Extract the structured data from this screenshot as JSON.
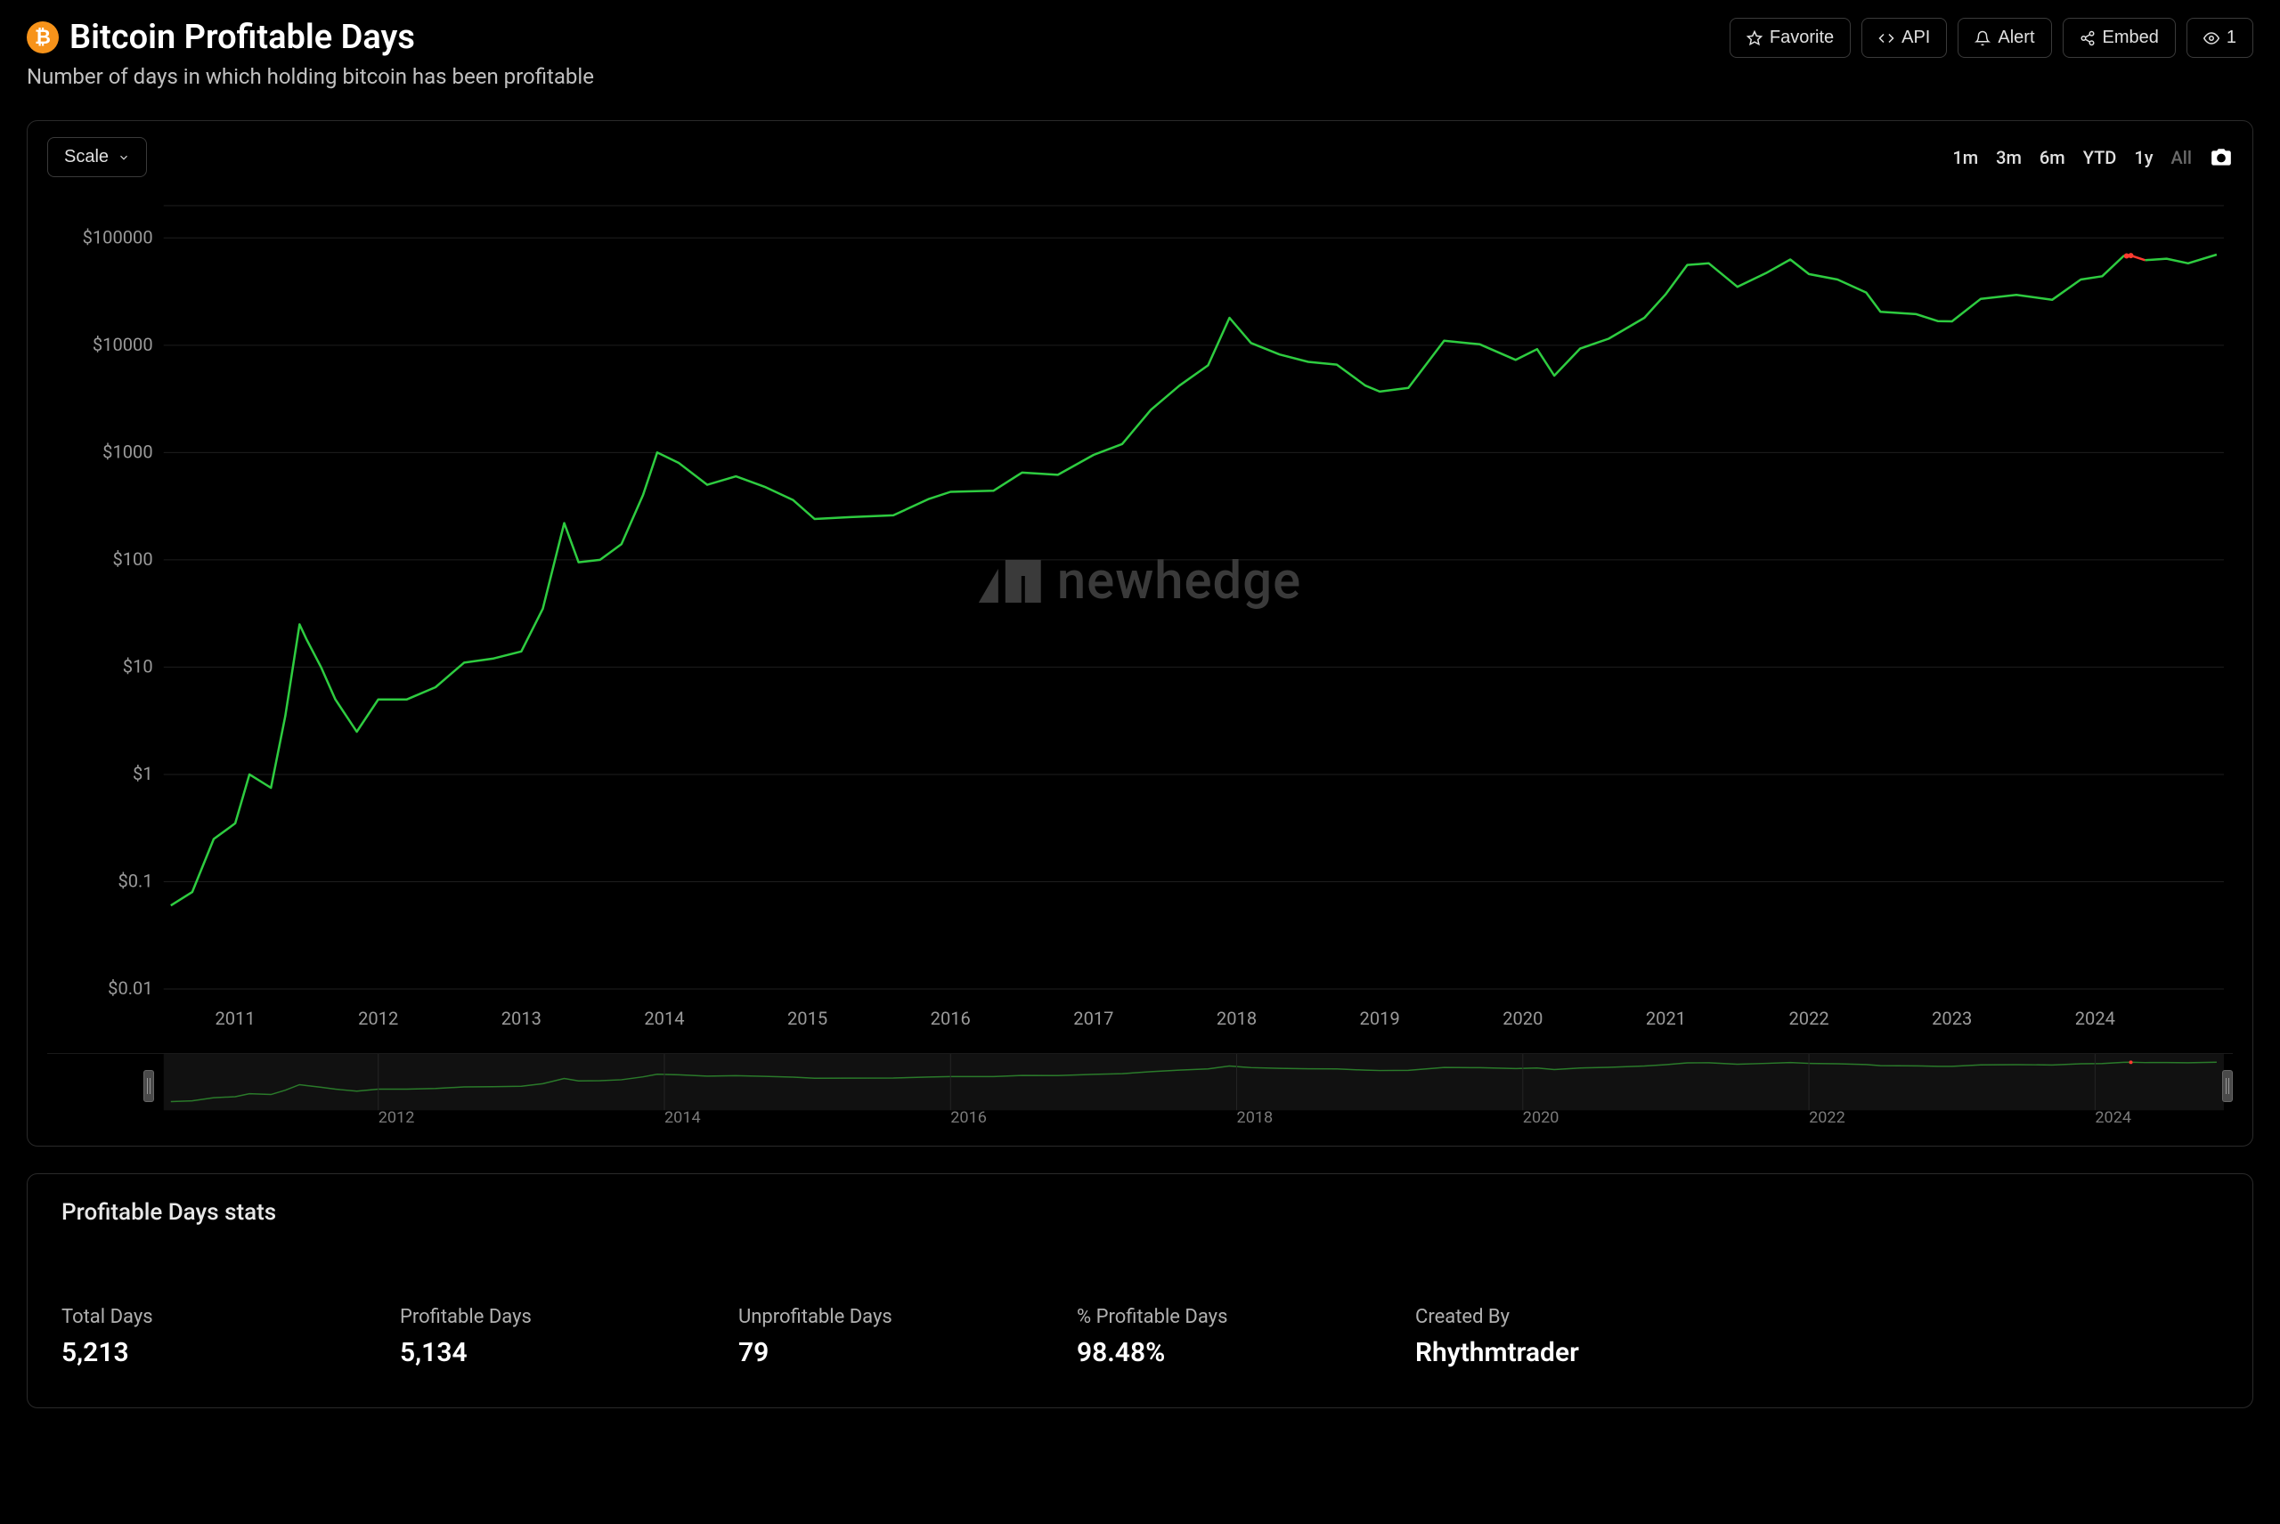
{
  "header": {
    "title": "Bitcoin Profitable Days",
    "subtitle": "Number of days in which holding bitcoin has been profitable",
    "icon_bg": "#f7931a",
    "icon_text": "₿"
  },
  "actions": {
    "favorite": "Favorite",
    "api": "API",
    "alert": "Alert",
    "embed": "Embed",
    "views": "1"
  },
  "toolbar": {
    "scale_label": "Scale",
    "ranges": [
      "1m",
      "3m",
      "6m",
      "YTD",
      "1y",
      "All"
    ],
    "active_range": "All"
  },
  "chart": {
    "type": "line",
    "scale": "log",
    "line_color_profit": "#2ecc40",
    "line_color_loss": "#ff3b30",
    "grid_color": "#1e1e1e",
    "background": "#000000",
    "axis_label_color": "#9a9a9a",
    "axis_fontsize": 20,
    "line_width": 2.5,
    "watermark_text": "newhedge",
    "watermark_color": "#3a3a3a",
    "xlim": [
      2010.5,
      2024.9
    ],
    "ylim": [
      0.01,
      200000
    ],
    "yticks": [
      0.01,
      0.1,
      1,
      10,
      100,
      1000,
      10000,
      100000
    ],
    "ytick_labels": [
      "$0.01",
      "$0.1",
      "$1",
      "$10",
      "$100",
      "$1000",
      "$10000",
      "$100000"
    ],
    "xticks": [
      2011,
      2012,
      2013,
      2014,
      2015,
      2016,
      2017,
      2018,
      2019,
      2020,
      2021,
      2022,
      2023,
      2024
    ],
    "series": [
      {
        "x": 2010.55,
        "y": 0.06,
        "p": true
      },
      {
        "x": 2010.7,
        "y": 0.08,
        "p": true
      },
      {
        "x": 2010.85,
        "y": 0.25,
        "p": true
      },
      {
        "x": 2011.0,
        "y": 0.35,
        "p": true
      },
      {
        "x": 2011.1,
        "y": 1.0,
        "p": true
      },
      {
        "x": 2011.25,
        "y": 0.75,
        "p": true
      },
      {
        "x": 2011.35,
        "y": 3.5,
        "p": true
      },
      {
        "x": 2011.45,
        "y": 25,
        "p": true
      },
      {
        "x": 2011.5,
        "y": 18,
        "p": true
      },
      {
        "x": 2011.6,
        "y": 10,
        "p": true
      },
      {
        "x": 2011.7,
        "y": 5,
        "p": true
      },
      {
        "x": 2011.85,
        "y": 2.5,
        "p": true
      },
      {
        "x": 2012.0,
        "y": 5,
        "p": true
      },
      {
        "x": 2012.2,
        "y": 5,
        "p": true
      },
      {
        "x": 2012.4,
        "y": 6.5,
        "p": true
      },
      {
        "x": 2012.6,
        "y": 11,
        "p": true
      },
      {
        "x": 2012.8,
        "y": 12,
        "p": true
      },
      {
        "x": 2013.0,
        "y": 14,
        "p": true
      },
      {
        "x": 2013.15,
        "y": 35,
        "p": true
      },
      {
        "x": 2013.3,
        "y": 220,
        "p": true
      },
      {
        "x": 2013.4,
        "y": 95,
        "p": true
      },
      {
        "x": 2013.55,
        "y": 100,
        "p": true
      },
      {
        "x": 2013.7,
        "y": 140,
        "p": true
      },
      {
        "x": 2013.85,
        "y": 400,
        "p": true
      },
      {
        "x": 2013.95,
        "y": 1000,
        "p": true
      },
      {
        "x": 2014.1,
        "y": 800,
        "p": true
      },
      {
        "x": 2014.3,
        "y": 500,
        "p": true
      },
      {
        "x": 2014.5,
        "y": 600,
        "p": true
      },
      {
        "x": 2014.7,
        "y": 480,
        "p": true
      },
      {
        "x": 2014.9,
        "y": 360,
        "p": true
      },
      {
        "x": 2015.05,
        "y": 240,
        "p": true
      },
      {
        "x": 2015.3,
        "y": 250,
        "p": true
      },
      {
        "x": 2015.6,
        "y": 260,
        "p": true
      },
      {
        "x": 2015.85,
        "y": 370,
        "p": true
      },
      {
        "x": 2016.0,
        "y": 430,
        "p": true
      },
      {
        "x": 2016.3,
        "y": 440,
        "p": true
      },
      {
        "x": 2016.5,
        "y": 650,
        "p": true
      },
      {
        "x": 2016.75,
        "y": 620,
        "p": true
      },
      {
        "x": 2017.0,
        "y": 950,
        "p": true
      },
      {
        "x": 2017.2,
        "y": 1200,
        "p": true
      },
      {
        "x": 2017.4,
        "y": 2500,
        "p": true
      },
      {
        "x": 2017.6,
        "y": 4200,
        "p": true
      },
      {
        "x": 2017.8,
        "y": 6500,
        "p": true
      },
      {
        "x": 2017.95,
        "y": 18000,
        "p": true
      },
      {
        "x": 2018.1,
        "y": 10500,
        "p": true
      },
      {
        "x": 2018.3,
        "y": 8200,
        "p": true
      },
      {
        "x": 2018.5,
        "y": 7000,
        "p": true
      },
      {
        "x": 2018.7,
        "y": 6600,
        "p": true
      },
      {
        "x": 2018.9,
        "y": 4200,
        "p": true
      },
      {
        "x": 2019.0,
        "y": 3700,
        "p": true
      },
      {
        "x": 2019.2,
        "y": 4000,
        "p": true
      },
      {
        "x": 2019.45,
        "y": 11000,
        "p": true
      },
      {
        "x": 2019.7,
        "y": 10200,
        "p": true
      },
      {
        "x": 2019.95,
        "y": 7300,
        "p": true
      },
      {
        "x": 2020.1,
        "y": 9200,
        "p": true
      },
      {
        "x": 2020.22,
        "y": 5200,
        "p": true
      },
      {
        "x": 2020.4,
        "y": 9300,
        "p": true
      },
      {
        "x": 2020.6,
        "y": 11500,
        "p": true
      },
      {
        "x": 2020.85,
        "y": 18000,
        "p": true
      },
      {
        "x": 2021.0,
        "y": 30000,
        "p": true
      },
      {
        "x": 2021.15,
        "y": 56000,
        "p": true
      },
      {
        "x": 2021.3,
        "y": 58000,
        "p": true
      },
      {
        "x": 2021.5,
        "y": 35000,
        "p": true
      },
      {
        "x": 2021.7,
        "y": 47000,
        "p": true
      },
      {
        "x": 2021.87,
        "y": 63000,
        "p": true
      },
      {
        "x": 2022.0,
        "y": 46000,
        "p": true
      },
      {
        "x": 2022.2,
        "y": 41000,
        "p": true
      },
      {
        "x": 2022.4,
        "y": 31000,
        "p": true
      },
      {
        "x": 2022.5,
        "y": 20500,
        "p": true
      },
      {
        "x": 2022.75,
        "y": 19500,
        "p": true
      },
      {
        "x": 2022.9,
        "y": 16800,
        "p": true
      },
      {
        "x": 2023.0,
        "y": 16700,
        "p": true
      },
      {
        "x": 2023.2,
        "y": 27000,
        "p": true
      },
      {
        "x": 2023.45,
        "y": 29500,
        "p": true
      },
      {
        "x": 2023.7,
        "y": 26500,
        "p": true
      },
      {
        "x": 2023.9,
        "y": 41000,
        "p": true
      },
      {
        "x": 2024.05,
        "y": 44000,
        "p": true
      },
      {
        "x": 2024.2,
        "y": 68000,
        "p": true
      },
      {
        "x": 2024.25,
        "y": 68500,
        "p": false
      },
      {
        "x": 2024.35,
        "y": 62000,
        "p": true
      },
      {
        "x": 2024.5,
        "y": 64000,
        "p": true
      },
      {
        "x": 2024.65,
        "y": 58000,
        "p": true
      },
      {
        "x": 2024.85,
        "y": 70000,
        "p": true
      }
    ]
  },
  "navigator": {
    "xticks": [
      2012,
      2014,
      2016,
      2018,
      2020,
      2022,
      2024
    ],
    "line_color": "#2a7a2a",
    "ylim": [
      0.01,
      200000
    ]
  },
  "stats": {
    "title": "Profitable Days stats",
    "items": [
      {
        "label": "Total Days",
        "value": "5,213"
      },
      {
        "label": "Profitable Days",
        "value": "5,134"
      },
      {
        "label": "Unprofitable Days",
        "value": "79"
      },
      {
        "label": "% Profitable Days",
        "value": "98.48%"
      },
      {
        "label": "Created By",
        "value": "Rhythmtrader"
      }
    ]
  }
}
